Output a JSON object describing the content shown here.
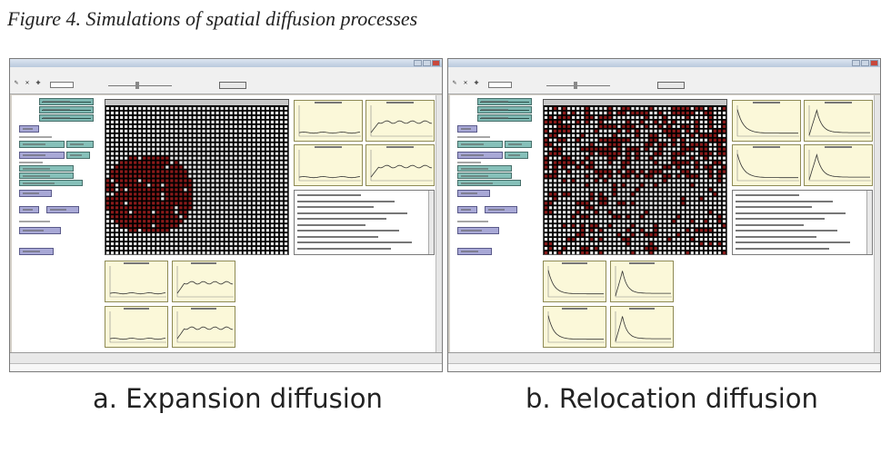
{
  "figure_title": "Figure 4. Simulations of spatial diffusion processes",
  "panels": [
    {
      "id": "expansion",
      "caption": "a. Expansion diffusion",
      "process": "expansion",
      "cluster_color": "#8a1a1a",
      "agent_color": "#e4e4e4",
      "plot_curves": [
        "flat",
        "rise",
        "flat",
        "rise",
        "flat",
        "rise",
        "flat",
        "rise"
      ]
    },
    {
      "id": "relocation",
      "caption": "b. Relocation diffusion",
      "process": "relocation",
      "cluster_color": "#8a1a1a",
      "agent_color": "#e4e4e4",
      "plot_curves": [
        "decay",
        "peak",
        "decay",
        "peak",
        "decay",
        "peak",
        "decay",
        "peak"
      ]
    }
  ]
}
